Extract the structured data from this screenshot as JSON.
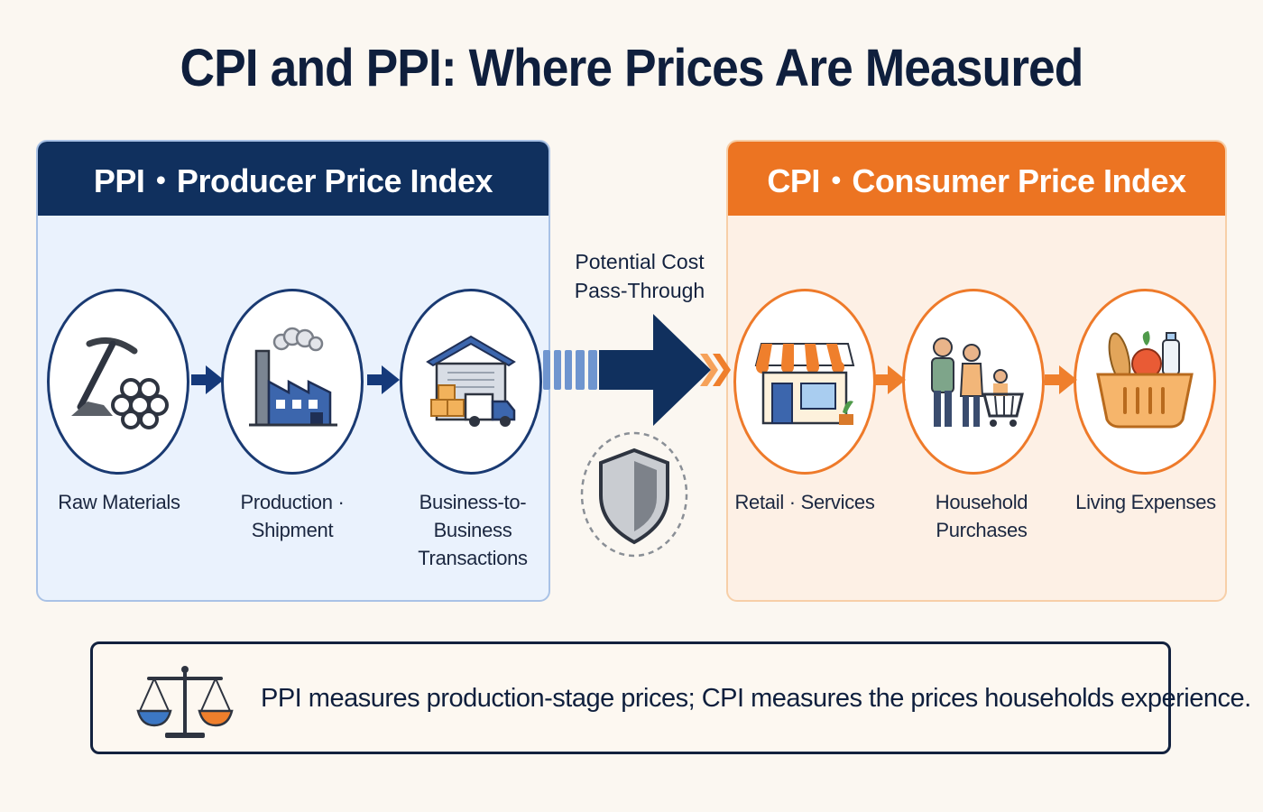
{
  "title": "CPI and PPI: Where Prices Are Measured",
  "ppi": {
    "header": "PPI・Producer Price Index",
    "color": "#10305e",
    "stages": [
      {
        "label": "Raw Materials",
        "icon": "pickaxe-and-pipes-icon"
      },
      {
        "label": "Production · Shipment",
        "icon": "factory-icon"
      },
      {
        "label": "Business-to-Business\nTransactions",
        "icon": "warehouse-truck-icon"
      }
    ]
  },
  "cpi": {
    "header": "CPI・Consumer Price Index",
    "color": "#ec7422",
    "stages": [
      {
        "label": "Retail · Services",
        "icon": "storefront-icon"
      },
      {
        "label": "Household Purchases",
        "icon": "family-shopping-cart-icon"
      },
      {
        "label": "Living Expenses",
        "icon": "grocery-basket-icon"
      }
    ]
  },
  "pass_through": {
    "label": "Potential Cost\nPass-Through",
    "icon": "shield-icon"
  },
  "summary": {
    "text": "PPI measures production-stage prices; CPI measures the prices households experience.",
    "icon": "balance-scale-icon"
  }
}
